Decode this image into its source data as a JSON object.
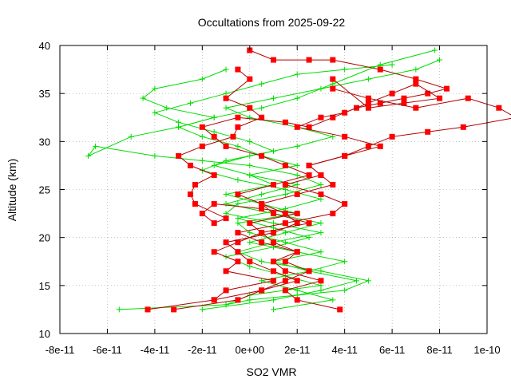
{
  "chart_data": {
    "type": "line",
    "title": "Occultations from 2025-09-22",
    "xlabel": "SO2 VMR",
    "ylabel": "Altitude (km)",
    "xlim": [
      -8e-11,
      1e-10
    ],
    "ylim": [
      10,
      40
    ],
    "xticks": [
      {
        "value": -8e-11,
        "label": "-8e-11"
      },
      {
        "value": -6e-11,
        "label": "-6e-11"
      },
      {
        "value": -4e-11,
        "label": "-4e-11"
      },
      {
        "value": -2e-11,
        "label": "-2e-11"
      },
      {
        "value": 0,
        "label": "0e+00"
      },
      {
        "value": 2e-11,
        "label": "2e-11"
      },
      {
        "value": 4e-11,
        "label": "4e-11"
      },
      {
        "value": 6e-11,
        "label": "6e-11"
      },
      {
        "value": 8e-11,
        "label": "8e-11"
      },
      {
        "value": 1e-10,
        "label": "1e-10"
      }
    ],
    "yticks": [
      {
        "value": 10,
        "label": "10"
      },
      {
        "value": 15,
        "label": "15"
      },
      {
        "value": 20,
        "label": "20"
      },
      {
        "value": 25,
        "label": "25"
      },
      {
        "value": 30,
        "label": "30"
      },
      {
        "value": 35,
        "label": "35"
      },
      {
        "value": 40,
        "label": "40"
      }
    ],
    "grid": true,
    "colors": {
      "red": "#ff0000",
      "darkred": "#b00000",
      "green": "#00dd00"
    },
    "series": [
      {
        "color": "red",
        "marker": "square",
        "x": [
          -4.3e-11,
          -1.5e-11,
          -1e-11,
          1e-11,
          -1e-11,
          -5e-12,
          -1.5e-11,
          -5e-12,
          5e-12,
          0.0,
          2e-11,
          5e-12,
          -1.5e-11,
          -2e-11,
          -1.5e-11,
          -1e-11,
          -2.3e-11,
          -2.5e-11,
          -2.3e-11,
          -1.5e-11,
          -2.5e-11,
          -3e-11,
          -2e-11,
          -7e-12,
          -5e-12,
          5e-12,
          0.0,
          -1e-11,
          0.0,
          -5e-12
        ],
        "y": [
          12.5,
          13.5,
          14.5,
          15.5,
          16.5,
          17.5,
          18.5,
          19.5,
          20.5,
          21.5,
          22.5,
          23,
          23.5,
          22.5,
          21.5,
          22,
          23.5,
          24.5,
          25.5,
          26.5,
          27.5,
          28.5,
          29.5,
          30.5,
          31.5,
          32.5,
          33.5,
          34.5,
          36.5,
          37.5
        ]
      },
      {
        "color": "red",
        "marker": "square",
        "x": [
          -3.2e-11,
          -5e-12,
          5e-12,
          2e-11,
          1e-11,
          0.0,
          -5e-12,
          -1e-11,
          1e-11,
          2e-11,
          1.5e-11,
          5e-12,
          -5e-12,
          1e-11,
          2.5e-11,
          1.5e-11,
          5e-12,
          -1e-11,
          -1.5e-11,
          -2e-11,
          -5e-12,
          1.5e-11,
          2.5e-11,
          3.5e-11,
          4.5e-11,
          5.5e-11,
          6.5e-11,
          7.5e-11,
          8.3e-11,
          7e-11,
          5.5e-11,
          3.5e-11,
          2.5e-11,
          1e-11,
          0.0
        ],
        "y": [
          12.5,
          13.5,
          14.5,
          15.5,
          16.5,
          17.5,
          18.5,
          19.5,
          20.5,
          21.5,
          22.5,
          23.5,
          24.5,
          25.5,
          26.5,
          27.5,
          28.5,
          29.5,
          30.5,
          31.5,
          32.5,
          32,
          31.5,
          32.5,
          33.5,
          34,
          34.5,
          35,
          35.5,
          36.5,
          37.5,
          38.5,
          38.5,
          38.5,
          39.5
        ]
      },
      {
        "color": "red",
        "marker": "square",
        "x": [
          3.8e-11,
          2e-11,
          1.5e-11,
          3e-11,
          1.5e-11,
          1e-11,
          2e-11,
          1e-11,
          5e-12,
          2.5e-11,
          1e-11,
          5e-12,
          2e-11,
          3.5e-11,
          3e-11,
          2.5e-11,
          4e-11,
          5.5e-11,
          4e-11,
          2e-11,
          3e-11,
          4e-11,
          5e-11,
          6e-11,
          7e-11,
          8e-11,
          6.5e-11,
          5e-11,
          3.5e-11
        ],
        "y": [
          12.5,
          13.5,
          14.5,
          15.5,
          16.5,
          17.5,
          18.5,
          19.5,
          20.5,
          21.5,
          22.5,
          23.5,
          24.5,
          25.5,
          26.5,
          27.5,
          28.5,
          29.5,
          30.5,
          31.5,
          32.5,
          33,
          34,
          35,
          36,
          34.5,
          34,
          33.5,
          36.5
        ]
      },
      {
        "color": "red",
        "marker": "square",
        "x": [
          -1.5e-11,
          5e-12,
          1.5e-11,
          2.5e-11,
          1.5e-11,
          2e-11,
          5e-12,
          -5e-12,
          1.5e-11,
          3.5e-11,
          4e-11,
          3e-11,
          1.5e-11,
          3e-11,
          2.5e-11,
          4e-11,
          5e-11,
          6e-11,
          7.5e-11,
          9e-11,
          1.12e-10,
          1.05e-10,
          9.2e-11,
          7e-11,
          5e-11,
          3.5e-11
        ],
        "y": [
          13.5,
          14.5,
          15.5,
          16.5,
          17.5,
          18.5,
          19.5,
          20.5,
          21.5,
          22.5,
          23.5,
          24.5,
          25.5,
          26.5,
          27.5,
          28.5,
          29.5,
          30.5,
          31,
          31.5,
          32.5,
          33.5,
          34.5,
          33.5,
          34.5,
          35.5
        ]
      }
    ],
    "series_green": [
      {
        "color": "green",
        "marker": "plus",
        "x": [
          -5.5e-11,
          -1e-11,
          0.0,
          2e-11,
          4e-11,
          5e-11,
          3e-11,
          5e-12,
          -5e-12,
          1e-11,
          3e-11,
          1e-11,
          -1e-11,
          -5e-12,
          1.5e-11,
          3e-11,
          2e-11,
          0.0,
          -2e-11,
          -4e-11,
          -6.5e-11,
          -6.8e-11,
          -5e-11,
          -3e-11,
          -1.5e-11,
          -3.5e-11,
          -4.5e-11,
          -4e-11,
          -2e-11,
          -1e-11
        ],
        "y": [
          12.5,
          13,
          13.5,
          14,
          14.5,
          15.5,
          16.5,
          17.5,
          18.5,
          19.5,
          20.5,
          21.5,
          22.5,
          23.5,
          24.5,
          25.5,
          26.5,
          27.5,
          28,
          28.5,
          29.5,
          28.5,
          30.5,
          31.5,
          32.5,
          33.5,
          34.5,
          35.5,
          36.5,
          37.5
        ]
      },
      {
        "color": "green",
        "marker": "plus",
        "x": [
          -2e-11,
          1e-11,
          3e-11,
          4.5e-11,
          2.5e-11,
          1e-11,
          3e-11,
          1.5e-11,
          0.0,
          -5e-12,
          2e-11,
          5e-12,
          -1e-11,
          1e-11,
          0.0,
          2e-11,
          5e-12,
          -5e-12,
          -2e-11,
          -3e-11,
          -1.5e-11,
          5e-12,
          2e-11,
          3.5e-11,
          5.5e-11,
          7.8e-11
        ],
        "y": [
          12.5,
          13.5,
          14.5,
          15.5,
          16.5,
          17.5,
          18.5,
          19.5,
          20.5,
          21.5,
          22.5,
          23.5,
          24.5,
          25.5,
          26.5,
          27.5,
          28.5,
          29.5,
          30.5,
          31.5,
          32.5,
          33.5,
          34.5,
          36,
          38,
          39.5
        ]
      },
      {
        "color": "green",
        "marker": "plus",
        "x": [
          1e-11,
          3.5e-11,
          2e-11,
          5e-12,
          2.5e-11,
          4e-11,
          2e-11,
          0.0,
          1.5e-11,
          3e-11,
          1e-11,
          -1e-11,
          5e-12,
          2e-11,
          0.0,
          -1.5e-11,
          0.0,
          2e-11,
          3.5e-11,
          2e-11,
          0.0,
          -1e-11,
          1e-11,
          3e-11,
          5e-11,
          7e-11,
          8e-11
        ],
        "y": [
          12.5,
          13.5,
          14.5,
          15.5,
          16.5,
          17.5,
          18.5,
          19.5,
          20.5,
          21.5,
          22.5,
          23.5,
          24.5,
          25.5,
          26.5,
          27.5,
          28.5,
          29.5,
          30.5,
          31.5,
          32.5,
          33.5,
          34.5,
          35.5,
          36.5,
          37.5,
          38.5
        ]
      },
      {
        "color": "green",
        "marker": "plus",
        "x": [
          -1e-11,
          0.0,
          3e-11,
          1.5e-11,
          0.0,
          -1e-11,
          1e-11,
          2.5e-11,
          1e-11,
          -5e-12,
          1.5e-11,
          3e-11,
          1.5e-11,
          -5e-12,
          -2e-11,
          -1e-11,
          1e-11,
          0.0,
          -1.5e-11,
          -3e-11,
          -4e-11,
          -2.5e-11,
          -1e-11,
          5e-12,
          2e-11,
          4e-11,
          6e-11
        ],
        "y": [
          13,
          14,
          15,
          16,
          17,
          18,
          19,
          20,
          21,
          22,
          23,
          24,
          25,
          26,
          27,
          28,
          29,
          30,
          31,
          32,
          33,
          34,
          35,
          36,
          37,
          37.5,
          38
        ]
      }
    ]
  }
}
